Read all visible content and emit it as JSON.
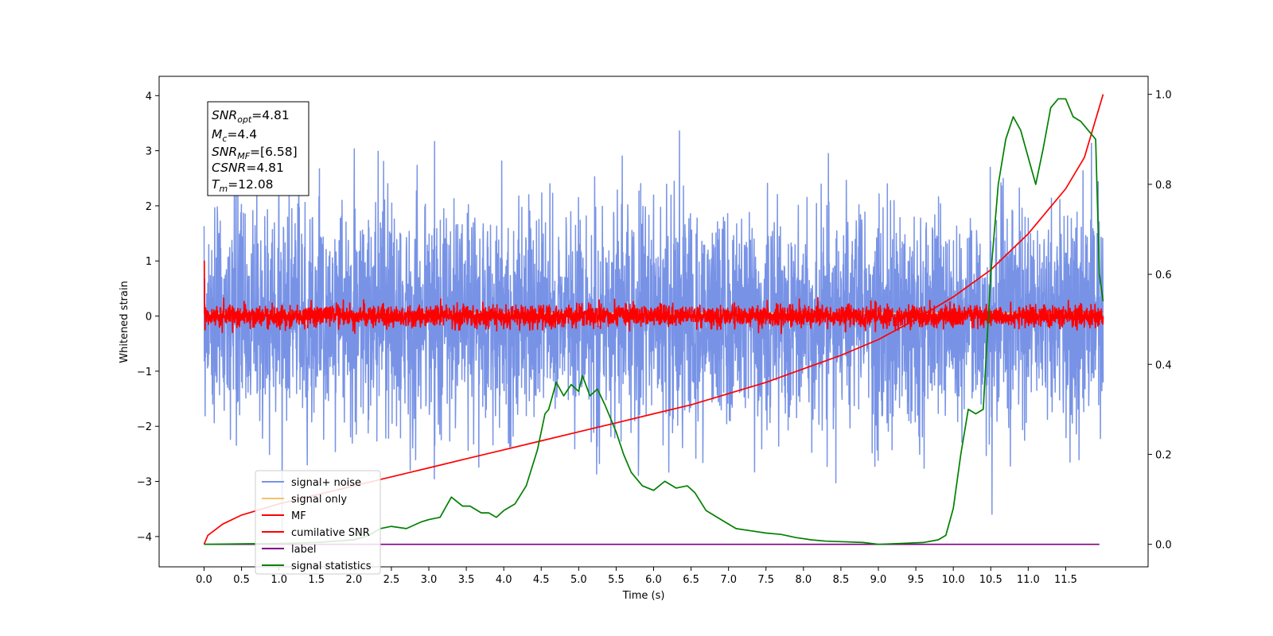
{
  "chart_data": {
    "type": "line",
    "xlabel": "Time (s)",
    "ylabel": "Whitened strain",
    "xlim": [
      -0.6,
      12.6
    ],
    "ylim": [
      -4.55,
      4.35
    ],
    "ylim_right": [
      -0.05,
      1.04
    ],
    "x_ticks": [
      "0.0",
      "0.5",
      "1.0",
      "1.5",
      "2.0",
      "2.5",
      "3.0",
      "3.5",
      "4.0",
      "4.5",
      "5.0",
      "5.5",
      "6.0",
      "6.5",
      "7.0",
      "7.5",
      "8.0",
      "8.5",
      "9.0",
      "9.5",
      "10.0",
      "10.5",
      "11.0",
      "11.5"
    ],
    "y_ticks": [
      "4",
      "3",
      "2",
      "1",
      "0",
      "−1",
      "−2",
      "−3",
      "−4"
    ],
    "y_ticks_right": [
      "1.0",
      "0.8",
      "0.6",
      "0.4",
      "0.2",
      "0.0"
    ],
    "legend_position": "lower-left",
    "annotation": {
      "line1": {
        "var": "SNR",
        "sub": "opt",
        "value": "=4.81"
      },
      "line2": {
        "var": "M",
        "sub": "c",
        "value": "=4.4"
      },
      "line3": {
        "var": "SNR",
        "sub": "MF",
        "value": "=[6.58]"
      },
      "line4": {
        "var": "CSNR",
        "sub": "",
        "value": "=4.81"
      },
      "line5": {
        "var": "T",
        "sub": "m",
        "value": "=12.08"
      }
    },
    "series": [
      {
        "name": "signal+ noise",
        "color": "#7893e6",
        "axis": "left",
        "kind": "noise",
        "x_range": [
          0,
          12.0
        ],
        "mean": 0,
        "std": 1.0,
        "ymax": 3.95,
        "ymin": -4.0
      },
      {
        "name": "signal only",
        "color": "#f5c26b",
        "axis": "left",
        "kind": "flat",
        "x_range": [
          0,
          12.0
        ],
        "value": 0.05
      },
      {
        "name": "MF",
        "color": "#ff0000",
        "axis": "left",
        "kind": "noise",
        "x_range": [
          0,
          12.0
        ],
        "mean": 0,
        "std": 0.1,
        "start_value": 1.0
      },
      {
        "name": "cumilative SNR",
        "color": "#ff0000",
        "axis": "right",
        "x": [
          0,
          0.05,
          0.25,
          0.5,
          1.0,
          1.5,
          2.0,
          2.5,
          3.0,
          3.5,
          4.0,
          4.5,
          5.0,
          5.5,
          6.0,
          6.5,
          7.0,
          7.5,
          8.0,
          8.5,
          9.0,
          9.5,
          10.0,
          10.5,
          11.0,
          11.5,
          11.75,
          12.0
        ],
        "y": [
          0.0,
          0.02,
          0.045,
          0.065,
          0.09,
          0.11,
          0.13,
          0.15,
          0.17,
          0.19,
          0.21,
          0.23,
          0.25,
          0.27,
          0.29,
          0.31,
          0.335,
          0.36,
          0.39,
          0.42,
          0.455,
          0.5,
          0.55,
          0.61,
          0.69,
          0.79,
          0.86,
          1.0
        ]
      },
      {
        "name": "label",
        "color": "#800080",
        "axis": "right",
        "kind": "flat",
        "x_range": [
          0,
          11.95
        ],
        "value": 0.0
      },
      {
        "name": "signal statistics",
        "color": "#008000",
        "axis": "right",
        "x": [
          0,
          0.5,
          1.0,
          1.5,
          2.0,
          2.2,
          2.35,
          2.5,
          2.7,
          2.9,
          3.0,
          3.15,
          3.3,
          3.45,
          3.55,
          3.7,
          3.8,
          3.9,
          4.0,
          4.15,
          4.3,
          4.45,
          4.55,
          4.6,
          4.7,
          4.8,
          4.9,
          5.0,
          5.05,
          5.15,
          5.25,
          5.35,
          5.5,
          5.6,
          5.7,
          5.85,
          6.0,
          6.15,
          6.3,
          6.45,
          6.55,
          6.7,
          6.9,
          7.1,
          7.3,
          7.5,
          7.7,
          7.9,
          8.1,
          8.3,
          8.5,
          8.8,
          9.0,
          9.3,
          9.6,
          9.8,
          9.9,
          10.0,
          10.1,
          10.2,
          10.3,
          10.4,
          10.5,
          10.6,
          10.7,
          10.8,
          10.9,
          11.0,
          11.1,
          11.2,
          11.3,
          11.4,
          11.5,
          11.6,
          11.7,
          11.8,
          11.9,
          11.95,
          12.0
        ],
        "y": [
          0.0,
          0.001,
          0.002,
          0.004,
          0.01,
          0.02,
          0.035,
          0.04,
          0.035,
          0.05,
          0.055,
          0.06,
          0.105,
          0.085,
          0.085,
          0.07,
          0.07,
          0.06,
          0.075,
          0.09,
          0.13,
          0.21,
          0.29,
          0.3,
          0.36,
          0.33,
          0.355,
          0.34,
          0.375,
          0.33,
          0.345,
          0.31,
          0.25,
          0.2,
          0.16,
          0.13,
          0.12,
          0.14,
          0.125,
          0.13,
          0.115,
          0.075,
          0.055,
          0.035,
          0.03,
          0.025,
          0.022,
          0.015,
          0.01,
          0.007,
          0.006,
          0.004,
          0.0,
          0.002,
          0.004,
          0.01,
          0.02,
          0.08,
          0.2,
          0.3,
          0.29,
          0.3,
          0.6,
          0.8,
          0.9,
          0.95,
          0.92,
          0.86,
          0.8,
          0.88,
          0.97,
          0.99,
          0.99,
          0.95,
          0.94,
          0.92,
          0.9,
          0.6,
          0.54
        ]
      }
    ]
  }
}
